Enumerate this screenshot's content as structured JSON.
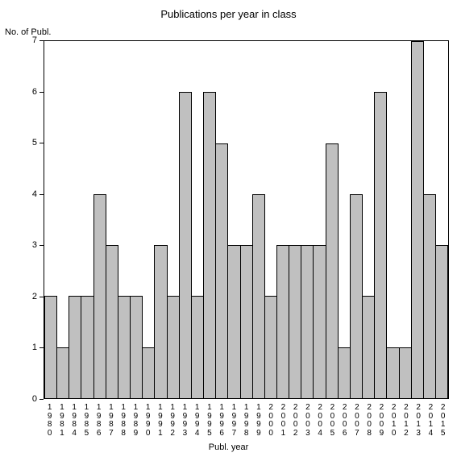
{
  "chart": {
    "type": "bar",
    "title": "Publications per year in class",
    "title_fontsize": 13,
    "x_axis_label": "Publ. year",
    "y_axis_label": "No. of Publ.",
    "label_fontsize": 11,
    "background_color": "#ffffff",
    "bar_fill_color": "#c0c0c0",
    "bar_border_color": "#000000",
    "axis_color": "#000000",
    "text_color": "#000000",
    "ylim": [
      0,
      7
    ],
    "ytick_step": 1,
    "yticks": [
      0,
      1,
      2,
      3,
      4,
      5,
      6,
      7
    ],
    "categories": [
      "1980",
      "1981",
      "1984",
      "1985",
      "1986",
      "1987",
      "1988",
      "1989",
      "1990",
      "1991",
      "1992",
      "1993",
      "1994",
      "1995",
      "1996",
      "1997",
      "1998",
      "1999",
      "2000",
      "2001",
      "2002",
      "2003",
      "2004",
      "2005",
      "2006",
      "2007",
      "2008",
      "2009",
      "2010",
      "2012",
      "2013",
      "2014",
      "2015"
    ],
    "values": [
      2,
      1,
      2,
      2,
      4,
      3,
      2,
      2,
      1,
      3,
      2,
      6,
      2,
      6,
      5,
      3,
      3,
      4,
      2,
      3,
      3,
      3,
      3,
      5,
      1,
      4,
      2,
      6,
      1,
      1,
      7,
      4,
      3
    ],
    "bar_width": 1.0,
    "tick_fontsize": 11,
    "x_tick_fontsize": 10
  }
}
